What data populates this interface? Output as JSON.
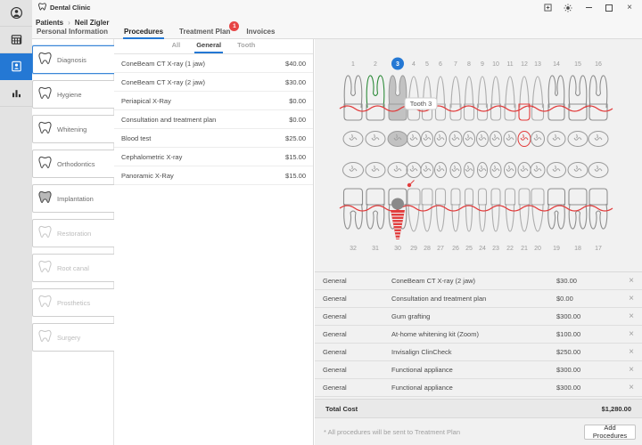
{
  "window": {
    "title": "Dental Clinic",
    "controls": [
      "expand",
      "theme",
      "minimize",
      "maximize",
      "close"
    ]
  },
  "sidebar": {
    "items": [
      {
        "icon": "user",
        "active": false
      },
      {
        "icon": "calendar",
        "active": false
      },
      {
        "icon": "patient-card",
        "active": true
      },
      {
        "icon": "stats",
        "active": false
      }
    ]
  },
  "breadcrumb": {
    "section": "Patients",
    "separator": "›",
    "patient": "Neil Zigler"
  },
  "tabs": [
    {
      "label": "Personal Information",
      "active": false,
      "badge": null
    },
    {
      "label": "Procedures",
      "active": true,
      "badge": null
    },
    {
      "label": "Treatment Plan",
      "active": false,
      "badge": "1"
    },
    {
      "label": "Invoices",
      "active": false,
      "badge": null
    }
  ],
  "categories": [
    {
      "label": "Diagnosis",
      "active": true,
      "enabled": true
    },
    {
      "label": "Hygiene",
      "active": false,
      "enabled": true
    },
    {
      "label": "Whitening",
      "active": false,
      "enabled": true
    },
    {
      "label": "Orthodontics",
      "active": false,
      "enabled": true
    },
    {
      "label": "Implantation",
      "active": false,
      "enabled": true,
      "icon_filled": true
    },
    {
      "label": "Restoration",
      "active": false,
      "enabled": false
    },
    {
      "label": "Root canal",
      "active": false,
      "enabled": false
    },
    {
      "label": "Prosthetics",
      "active": false,
      "enabled": false
    },
    {
      "label": "Surgery",
      "active": false,
      "enabled": false
    }
  ],
  "subtabs": [
    {
      "label": "All",
      "active": false
    },
    {
      "label": "General",
      "active": true
    },
    {
      "label": "Tooth",
      "active": false
    }
  ],
  "procedures": [
    {
      "name": "ConeBeam CT X-ray (1 jaw)",
      "price": "$40.00"
    },
    {
      "name": "ConeBeam CT X-ray (2 jaw)",
      "price": "$30.00"
    },
    {
      "name": "Periapical X-Ray",
      "price": "$0.00"
    },
    {
      "name": "Consultation and treatment plan",
      "price": "$0.00"
    },
    {
      "name": "Blood test",
      "price": "$25.00"
    },
    {
      "name": "Cephalometric X-ray",
      "price": "$15.00"
    },
    {
      "name": "Panoramic X-Ray",
      "price": "$15.00"
    }
  ],
  "teeth_chart": {
    "upper_numbers": [
      "1",
      "2",
      "3",
      "4",
      "5",
      "6",
      "7",
      "8",
      "9",
      "10",
      "11",
      "12",
      "13",
      "14",
      "15",
      "16"
    ],
    "lower_numbers": [
      "32",
      "31",
      "30",
      "29",
      "28",
      "27",
      "26",
      "25",
      "24",
      "23",
      "22",
      "21",
      "20",
      "19",
      "18",
      "17"
    ],
    "selected_tooth": "3",
    "tooltip": "Tooth 3",
    "marks": {
      "green_root_tooth": "2",
      "selected_gray_tooth": "3",
      "red_outline_tooth": "12",
      "implant_tooth": "30"
    }
  },
  "selected_procedures": [
    {
      "category": "General",
      "name": "ConeBeam CT X-ray (2 jaw)",
      "price": "$30.00"
    },
    {
      "category": "General",
      "name": "Consultation and treatment plan",
      "price": "$0.00"
    },
    {
      "category": "General",
      "name": "Gum grafting",
      "price": "$300.00"
    },
    {
      "category": "General",
      "name": "At-home whitening kit (Zoom)",
      "price": "$100.00"
    },
    {
      "category": "General",
      "name": "Invisalign ClinCheck",
      "price": "$250.00"
    },
    {
      "category": "General",
      "name": "Functional appliance",
      "price": "$300.00"
    },
    {
      "category": "General",
      "name": "Functional appliance",
      "price": "$300.00"
    }
  ],
  "right_panel": {
    "total_label": "Total Cost",
    "total_value": "$1,280.00"
  },
  "footer": {
    "note": "* All procedures will be sent to Treatment Plan",
    "add_button_label": "Add Procedures"
  },
  "colors": {
    "accent": "#2478d4",
    "badge_red": "#e64545",
    "chart_red": "#e23b3b",
    "root_canal_green": "#2e8b3a",
    "selected_tooth_fill": "#c2c2c2"
  }
}
